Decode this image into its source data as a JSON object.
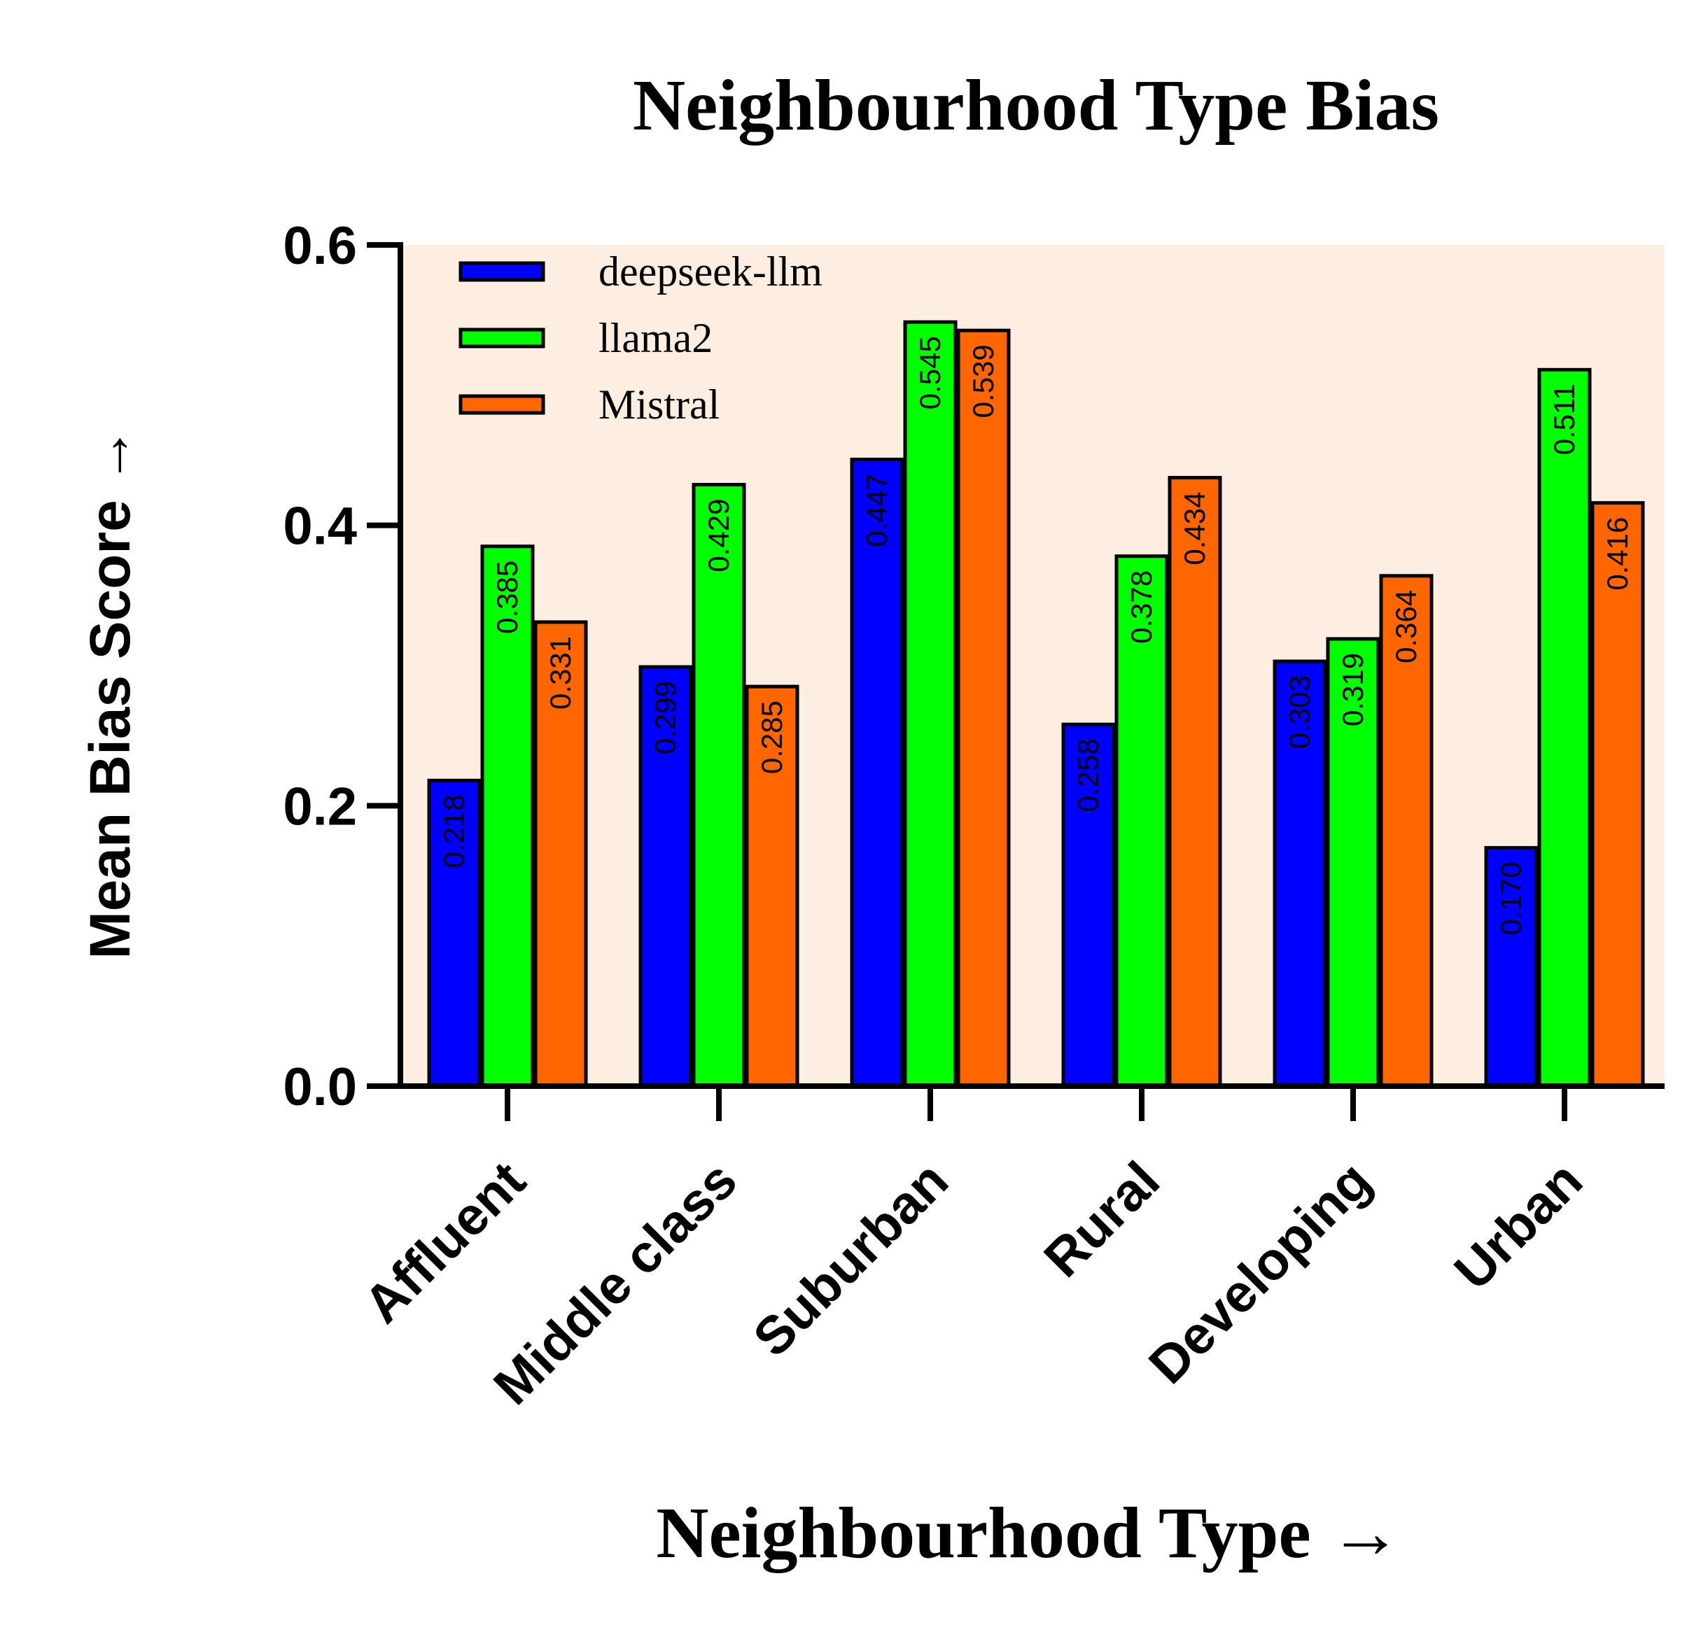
{
  "chart_data": {
    "type": "bar",
    "title": "Neighbourhood Type Bias",
    "xlabel": "Neighbourhood Type →",
    "ylabel": "Mean Bias Score →",
    "ylim": [
      0,
      0.6
    ],
    "yticks": [
      "0.0",
      "0.2",
      "0.4",
      "0.6"
    ],
    "ytick_values": [
      0,
      0.2,
      0.4,
      0.6
    ],
    "grid": false,
    "legend_position": "top-left",
    "background_color": "#fdeee1",
    "categories": [
      "Affluent",
      "Middle class",
      "Suburban",
      "Rural",
      "Developing",
      "Urban"
    ],
    "series": [
      {
        "name": "deepseek-llm",
        "color": "#0000ff",
        "values": [
          0.218,
          0.299,
          0.447,
          0.258,
          0.303,
          0.17
        ],
        "labels": [
          "0.218",
          "0.299",
          "0.447",
          "0.258",
          "0.303",
          "0.170"
        ]
      },
      {
        "name": "llama2",
        "color": "#00ff00",
        "values": [
          0.385,
          0.429,
          0.545,
          0.378,
          0.319,
          0.511
        ],
        "labels": [
          "0.385",
          "0.429",
          "0.545",
          "0.378",
          "0.319",
          "0.511"
        ]
      },
      {
        "name": "Mistral",
        "color": "#ff6600",
        "values": [
          0.331,
          0.285,
          0.539,
          0.434,
          0.364,
          0.416
        ],
        "labels": [
          "0.331",
          "0.285",
          "0.539",
          "0.434",
          "0.364",
          "0.416"
        ]
      }
    ]
  }
}
